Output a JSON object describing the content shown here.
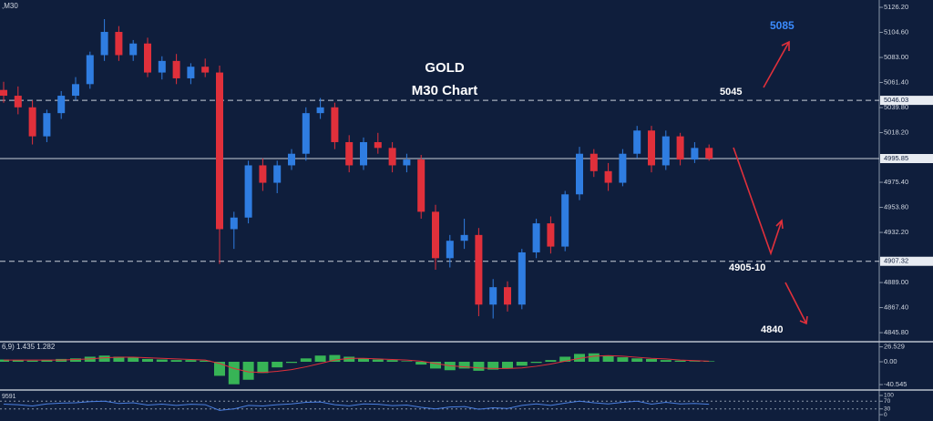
{
  "chart_data": [
    {
      "type": "candlestick",
      "title": "GOLD",
      "subtitle": "M30 Chart",
      "label": ",M30",
      "up_color": "#2f7de1",
      "down_color": "#e0303b",
      "open": [
        5055,
        5050,
        5040,
        5015,
        5035,
        5050,
        5060,
        5085,
        5105,
        5085,
        5095,
        5070,
        5080,
        5065,
        5075,
        5070,
        4935,
        4945,
        4990,
        4975,
        4990,
        5000,
        5035,
        5040,
        5010,
        4990,
        5010,
        5005,
        4990,
        4995,
        4950,
        4910,
        4925,
        4930,
        4870,
        4885,
        4870,
        4915,
        4940,
        4920,
        4965,
        5000,
        4985,
        4975,
        5000,
        5020,
        4990,
        5015,
        4995,
        5005
      ],
      "high": [
        5062,
        5058,
        5046,
        5038,
        5054,
        5066,
        5088,
        5116,
        5110,
        5098,
        5100,
        5084,
        5086,
        5078,
        5082,
        5076,
        4950,
        4994,
        4996,
        4994,
        5004,
        5040,
        5048,
        5044,
        5016,
        5014,
        5018,
        5010,
        5000,
        4999,
        4956,
        4930,
        4944,
        4936,
        4892,
        4890,
        4918,
        4944,
        4946,
        4968,
        5006,
        5004,
        4992,
        5004,
        5024,
        5024,
        5020,
        5018,
        5010,
        5008
      ],
      "low": [
        5044,
        5034,
        5008,
        5010,
        5030,
        5046,
        5056,
        5080,
        5080,
        5080,
        5066,
        5064,
        5060,
        5060,
        5066,
        4905,
        4918,
        4940,
        4968,
        4966,
        4986,
        4994,
        5030,
        5004,
        4984,
        4986,
        5000,
        4984,
        4984,
        4944,
        4900,
        4902,
        4918,
        4860,
        4858,
        4864,
        4866,
        4910,
        4914,
        4916,
        4960,
        4980,
        4968,
        4972,
        4996,
        4984,
        4986,
        4990,
        4992,
        4994
      ],
      "close": [
        5050,
        5040,
        5015,
        5035,
        5050,
        5060,
        5085,
        5105,
        5085,
        5095,
        5070,
        5080,
        5065,
        5075,
        5070,
        4935,
        4945,
        4990,
        4975,
        4990,
        5000,
        5035,
        5040,
        5010,
        4990,
        5010,
        5005,
        4990,
        4995,
        4950,
        4910,
        4925,
        4930,
        4870,
        4885,
        4870,
        4915,
        4940,
        4920,
        4965,
        5000,
        4985,
        4975,
        5000,
        5020,
        4990,
        5015,
        4995,
        5005,
        4995.85
      ],
      "ylim": [
        4838,
        5132.5
      ],
      "yticks": [
        {
          "value": 5126.2,
          "label": "5126.20"
        },
        {
          "value": 5104.6,
          "label": "5104.60"
        },
        {
          "value": 5083,
          "label": "5083.00"
        },
        {
          "value": 5061.4,
          "label": "5061.40"
        },
        {
          "value": 5039.8,
          "label": "5039.80"
        },
        {
          "value": 5018.2,
          "label": "5018.20"
        },
        {
          "value": 4975.4,
          "label": "4975.40"
        },
        {
          "value": 4953.8,
          "label": "4953.80"
        },
        {
          "value": 4932.2,
          "label": "4932.20"
        },
        {
          "value": 4889,
          "label": "4889.00"
        },
        {
          "value": 4867.4,
          "label": "4867.40"
        },
        {
          "value": 4845.8,
          "label": "4845.80"
        }
      ],
      "levels": [
        {
          "value": 5046.03,
          "style": "dashed"
        },
        {
          "value": 4995.85,
          "style": "solid"
        },
        {
          "value": 4907.32,
          "style": "dashed"
        }
      ],
      "annotations": [
        {
          "text": "5085",
          "color": "#3b8cff"
        },
        {
          "text": "5045",
          "color": "#ffffff"
        },
        {
          "text": "4905-10",
          "color": "#ffffff"
        },
        {
          "text": "4840",
          "color": "#ffffff"
        }
      ]
    },
    {
      "type": "bar",
      "label": "6,9) 1.435 1.282",
      "color": "#3ecf5a",
      "signal_color": "#e0303b",
      "values": [
        4,
        3,
        2,
        3,
        5,
        6,
        9,
        11,
        9,
        8,
        5,
        4,
        3,
        3,
        2,
        -25,
        -40,
        -32,
        -20,
        -10,
        -2,
        6,
        11,
        12,
        9,
        6,
        4,
        3,
        1,
        -5,
        -12,
        -15,
        -12,
        -16,
        -14,
        -12,
        -7,
        -2,
        3,
        9,
        14,
        15,
        11,
        8,
        6,
        5,
        3,
        2,
        1,
        1
      ],
      "signal": [
        3,
        3,
        3,
        3,
        3,
        4,
        5,
        7,
        8,
        8,
        7,
        6,
        5,
        4,
        3,
        -3,
        -12,
        -18,
        -19,
        -17,
        -14,
        -9,
        -3,
        3,
        6,
        6,
        5,
        4,
        3,
        1,
        -3,
        -7,
        -9,
        -11,
        -12,
        -12,
        -11,
        -8,
        -4,
        1,
        6,
        10,
        11,
        10,
        8,
        6,
        5,
        3,
        2,
        1
      ],
      "ylim": [
        -48.6,
        32.4
      ],
      "yticks": [
        {
          "value": 26.529,
          "label": "26.529"
        },
        {
          "value": 0,
          "label": "0.00"
        },
        {
          "value": -40.545,
          "label": "-40.545"
        }
      ]
    },
    {
      "type": "line",
      "label": "9591",
      "color": "#4a7fe0",
      "values": [
        55,
        52,
        45,
        56,
        60,
        62,
        68,
        70,
        58,
        62,
        50,
        55,
        48,
        54,
        52,
        22,
        30,
        48,
        45,
        52,
        56,
        64,
        66,
        52,
        46,
        56,
        54,
        47,
        50,
        38,
        30,
        40,
        42,
        28,
        36,
        32,
        48,
        56,
        48,
        60,
        70,
        62,
        56,
        64,
        70,
        55,
        64,
        56,
        58,
        54
      ],
      "ylim": [
        -33,
        114
      ],
      "yticks": [
        100,
        70,
        30,
        0
      ],
      "levels": [
        70,
        30
      ]
    }
  ]
}
